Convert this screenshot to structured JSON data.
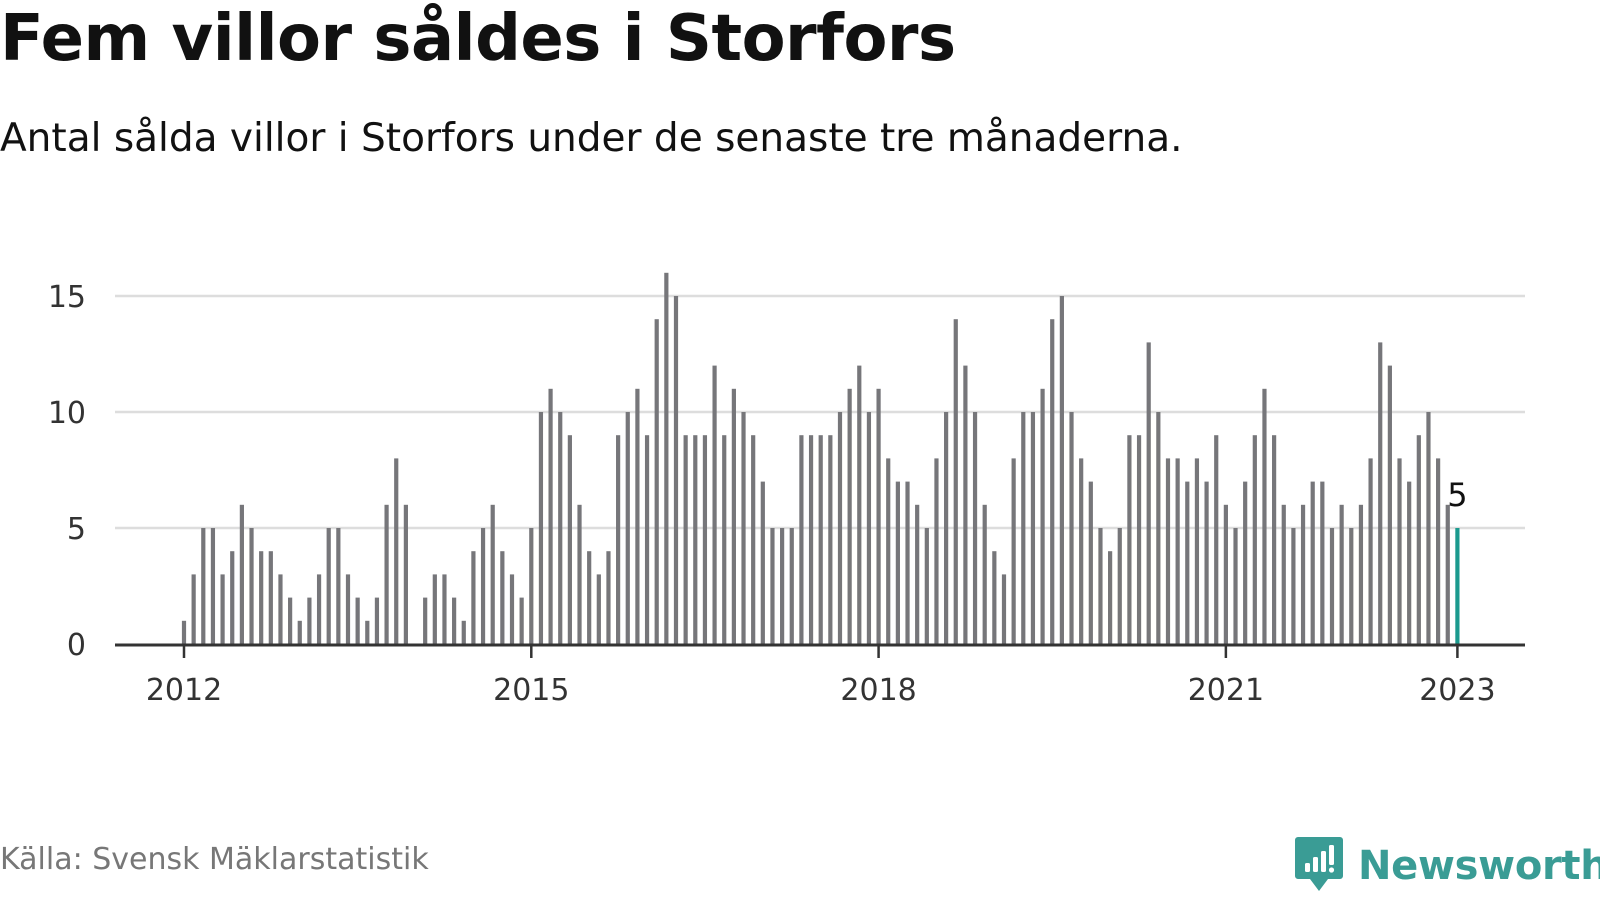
{
  "title": "Fem villor såldes i Storfors",
  "subtitle": "Antal sålda villor i Storfors under de senaste tre månaderna.",
  "source": "Källa: Svensk Mäklarstatistik",
  "brand": {
    "name": "Newsworthy",
    "icon": "newsworthy-logo-icon",
    "color": "#3a9c95"
  },
  "colors": {
    "bar": "#76767a",
    "highlight": "#1a9a8e",
    "grid": "#dddddd",
    "axis": "#333333"
  },
  "chart_data": {
    "type": "bar",
    "x_start": "2012-01",
    "x_step": "month",
    "values": [
      1,
      3,
      5,
      5,
      3,
      4,
      6,
      5,
      4,
      4,
      3,
      2,
      1,
      2,
      3,
      5,
      5,
      3,
      2,
      1,
      2,
      6,
      8,
      6,
      0,
      2,
      3,
      3,
      2,
      1,
      4,
      5,
      6,
      4,
      3,
      2,
      5,
      10,
      11,
      10,
      9,
      6,
      4,
      3,
      4,
      9,
      10,
      11,
      9,
      14,
      16,
      15,
      9,
      9,
      9,
      12,
      9,
      11,
      10,
      9,
      7,
      5,
      5,
      5,
      9,
      9,
      9,
      9,
      10,
      11,
      12,
      10,
      11,
      8,
      7,
      7,
      6,
      5,
      8,
      10,
      14,
      12,
      10,
      6,
      4,
      3,
      8,
      10,
      10,
      11,
      14,
      15,
      10,
      8,
      7,
      5,
      4,
      5,
      9,
      9,
      13,
      10,
      8,
      8,
      7,
      8,
      7,
      9,
      6,
      5,
      7,
      9,
      11,
      9,
      6,
      5,
      6,
      7,
      7,
      5,
      6,
      5,
      6,
      8,
      13,
      12,
      8,
      7,
      9,
      10,
      8,
      6,
      5
    ],
    "highlight_index": 132,
    "highlight_label": "5",
    "xticks": [
      {
        "label": "2012",
        "index": 0
      },
      {
        "label": "2015",
        "index": 36
      },
      {
        "label": "2018",
        "index": 72
      },
      {
        "label": "2021",
        "index": 108
      },
      {
        "label": "2023",
        "index": 132
      }
    ],
    "yticks": [
      0,
      5,
      10,
      15
    ],
    "ylim": [
      0,
      16
    ],
    "grid": true,
    "xlabel": "",
    "ylabel": ""
  }
}
